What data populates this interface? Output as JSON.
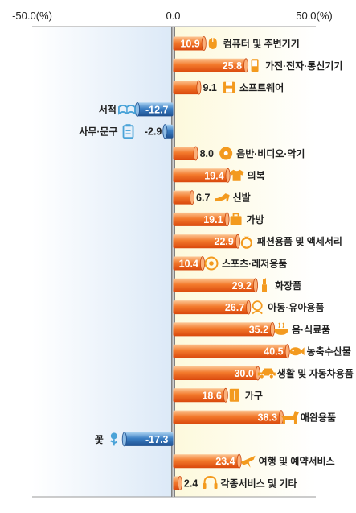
{
  "chart_data": {
    "type": "bar",
    "orientation": "horizontal",
    "axis_ticks": [
      "-50.0(%)",
      "0.0",
      "50.0(%)"
    ],
    "xlim": [
      -50,
      50
    ],
    "grid": false,
    "legend": "none",
    "colors": {
      "positive_fill": "#ea5a14",
      "positive_light": "#fbb07a",
      "negative_fill": "#2a66a8",
      "negative_light": "#8fbde6",
      "icon": "#f39a1e",
      "negative_icon": "#4aa3d8",
      "left_panel": "#e6f0fa",
      "right_panel": "#fdfbe6"
    },
    "categories": [
      "컴퓨터 및 주변기기",
      "가전·전자·통신기기",
      "소프트웨어",
      "서적",
      "사무·문구",
      "음반·비디오·악기",
      "의복",
      "신발",
      "가방",
      "패션용품 및 액세서리",
      "스포츠·레저용품",
      "화장품",
      "아동·유아용품",
      "음·식료품",
      "농축수산물",
      "생활 및 자동차용품",
      "가구",
      "애완용품",
      "꽃",
      "여행 및 예약서비스",
      "각종서비스 및 기타"
    ],
    "values": [
      10.9,
      25.8,
      9.1,
      -12.7,
      -2.9,
      8.0,
      19.4,
      6.7,
      19.1,
      22.9,
      10.4,
      29.2,
      26.7,
      35.2,
      40.5,
      30.0,
      18.6,
      38.3,
      -17.3,
      23.4,
      2.4
    ],
    "value_labels": [
      "10.9",
      "25.8",
      "9.1",
      "-12.7",
      "-2.9",
      "8.0",
      "19.4",
      "6.7",
      "19.1",
      "22.9",
      "10.4",
      "29.2",
      "26.7",
      "35.2",
      "40.5",
      "30.0",
      "18.6",
      "38.3",
      "-17.3",
      "23.4",
      "2.4"
    ],
    "icons": [
      "mouse-icon",
      "phone-icon",
      "floppy-disk-icon",
      "open-book-icon",
      "clipboard-icon",
      "disc-icon",
      "shirt-icon",
      "high-heel-icon",
      "bag-icon",
      "ring-icon",
      "soccer-ball-icon",
      "lipstick-icon",
      "baby-icon",
      "bowl-icon",
      "fish-icon",
      "car-icon",
      "cabinet-icon",
      "dog-icon",
      "flower-icon",
      "airplane-icon",
      "headset-icon"
    ]
  }
}
